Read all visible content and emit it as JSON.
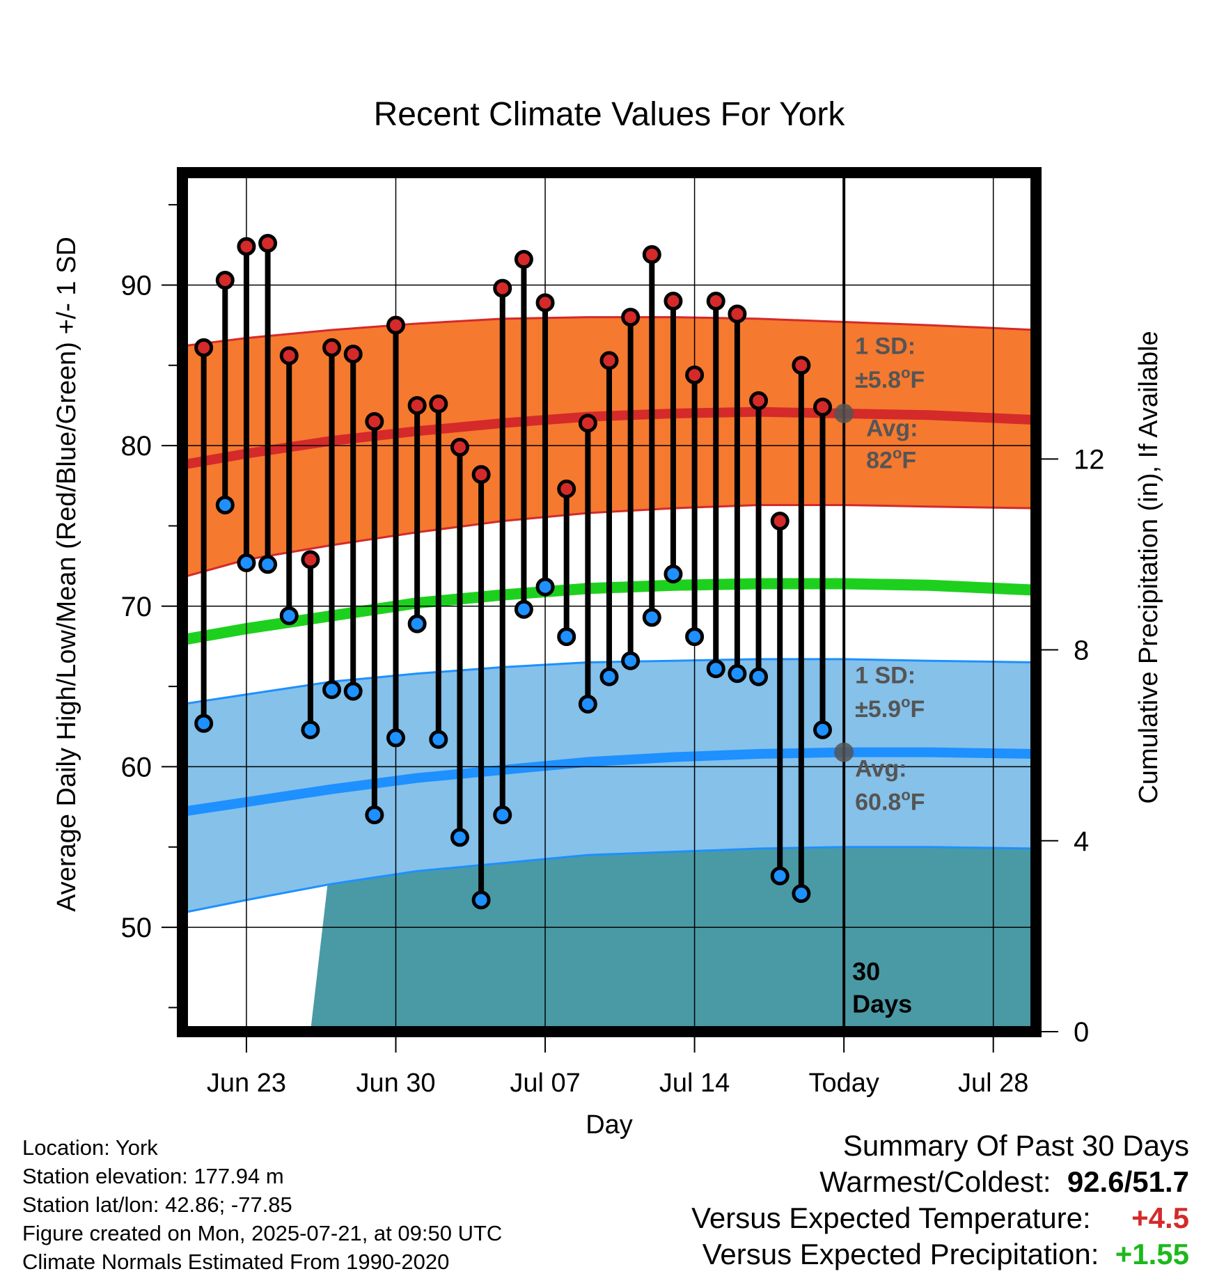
{
  "chart_data": {
    "type": "line",
    "title": "Recent Climate Values For York",
    "xlabel": "Day",
    "ylabel": "Average Daily High/Low/Mean (Red/Blue/Green) +/- 1 SD",
    "y2label": "Cumulative Precipitation (in), If Available",
    "x_ticks": [
      {
        "date": "2025-06-23",
        "label": "Jun 23"
      },
      {
        "date": "2025-06-30",
        "label": "Jun 30"
      },
      {
        "date": "2025-07-07",
        "label": "Jul 07"
      },
      {
        "date": "2025-07-14",
        "label": "Jul 14"
      },
      {
        "date": "2025-07-21",
        "label": "Today"
      },
      {
        "date": "2025-07-28",
        "label": "Jul 28"
      }
    ],
    "xlim": [
      "2025-06-20",
      "2025-07-30"
    ],
    "ylim": [
      43.5,
      97
    ],
    "y_ticks": [
      50,
      60,
      70,
      80,
      90
    ],
    "y2lim": [
      0,
      18
    ],
    "y2_ticks": [
      0,
      4,
      8,
      12
    ],
    "dates": [
      "2025-06-21",
      "2025-06-22",
      "2025-06-23",
      "2025-06-24",
      "2025-06-25",
      "2025-06-26",
      "2025-06-27",
      "2025-06-28",
      "2025-06-29",
      "2025-06-30",
      "2025-07-01",
      "2025-07-02",
      "2025-07-03",
      "2025-07-04",
      "2025-07-05",
      "2025-07-06",
      "2025-07-07",
      "2025-07-08",
      "2025-07-09",
      "2025-07-10",
      "2025-07-11",
      "2025-07-12",
      "2025-07-13",
      "2025-07-14",
      "2025-07-15",
      "2025-07-16",
      "2025-07-17",
      "2025-07-18",
      "2025-07-19",
      "2025-07-20"
    ],
    "series": [
      {
        "name": "High",
        "color": "#d42a2a",
        "values": [
          86.1,
          90.3,
          92.4,
          92.6,
          85.6,
          72.9,
          86.1,
          85.7,
          81.5,
          87.5,
          82.5,
          82.6,
          79.9,
          78.2,
          89.8,
          91.6,
          88.9,
          77.3,
          81.4,
          85.3,
          88.0,
          91.9,
          89.0,
          84.4,
          89.0,
          88.2,
          82.8,
          75.3,
          85.0,
          82.4
        ]
      },
      {
        "name": "Low",
        "color": "#1e90ff",
        "values": [
          62.7,
          76.3,
          72.7,
          72.6,
          69.4,
          62.3,
          64.8,
          64.7,
          57.0,
          61.8,
          68.9,
          61.7,
          55.6,
          51.7,
          57.0,
          69.8,
          71.2,
          68.1,
          63.9,
          65.6,
          66.6,
          69.3,
          72.0,
          68.1,
          66.1,
          65.8,
          65.6,
          53.2,
          52.1,
          62.3
        ]
      }
    ],
    "normals": {
      "dates": [
        "2025-06-20",
        "2025-06-23",
        "2025-06-27",
        "2025-07-01",
        "2025-07-05",
        "2025-07-09",
        "2025-07-13",
        "2025-07-17",
        "2025-07-21",
        "2025-07-25",
        "2025-07-30"
      ],
      "high_avg": [
        78.8,
        79.5,
        80.3,
        80.9,
        81.4,
        81.8,
        82.0,
        82.1,
        82.0,
        81.9,
        81.6
      ],
      "high_sd_upper": [
        86.2,
        86.7,
        87.2,
        87.6,
        87.9,
        88.0,
        88.0,
        87.9,
        87.7,
        87.5,
        87.2
      ],
      "high_sd_lower": [
        71.8,
        72.9,
        73.8,
        74.6,
        75.3,
        75.8,
        76.1,
        76.3,
        76.3,
        76.2,
        76.1
      ],
      "mean_avg": [
        67.9,
        68.6,
        69.4,
        70.2,
        70.7,
        71.1,
        71.3,
        71.4,
        71.4,
        71.3,
        71.0
      ],
      "low_avg": [
        57.2,
        57.8,
        58.6,
        59.3,
        59.8,
        60.3,
        60.6,
        60.8,
        60.9,
        60.9,
        60.8
      ],
      "low_sd_upper": [
        63.9,
        64.5,
        65.3,
        65.8,
        66.2,
        66.5,
        66.6,
        66.7,
        66.7,
        66.6,
        66.5
      ],
      "low_sd_lower": [
        50.9,
        51.7,
        52.7,
        53.5,
        54.0,
        54.5,
        54.7,
        54.9,
        55.0,
        55.0,
        54.9
      ]
    },
    "precip_cumulative": {
      "dates": [
        "2025-06-20",
        "2025-06-26",
        "2025-06-27",
        "2025-06-29",
        "2025-06-30",
        "2025-07-01",
        "2025-07-02",
        "2025-07-11",
        "2025-07-12",
        "2025-07-15",
        "2025-07-16",
        "2025-07-30"
      ],
      "values": [
        0.0,
        0.0,
        3.85,
        3.85,
        4.3,
        4.4,
        4.45,
        4.45,
        4.8,
        4.8,
        5.15,
        5.15
      ]
    },
    "annotations": {
      "high_sd": "1 SD:",
      "high_sd_value": "±5.8°F",
      "high_avg_label": "Avg:",
      "high_avg_value": "82°F",
      "low_sd": "1 SD:",
      "low_sd_value": "±5.9°F",
      "low_avg_label": "Avg:",
      "low_avg_value": "60.8°F",
      "days": "30",
      "days_label": "Days"
    },
    "colors": {
      "high_band": "#f5792f",
      "high_line": "#d42a2a",
      "low_band": "#85c1e9",
      "low_line": "#1e90ff",
      "mean_line": "#1ed01e",
      "precip": "#4a9aa5",
      "marker_high": "#d42a2a",
      "marker_low": "#1e90ff",
      "annotation_text": "#555555"
    }
  },
  "info": {
    "location": "Location: York",
    "elevation": "Station elevation: 177.94 m",
    "latlon": "Station lat/lon: 42.86; -77.85",
    "created": "Figure created on Mon, 2025-07-21, at 09:50 UTC",
    "normals": "Climate Normals Estimated From 1990-2020"
  },
  "summary": {
    "title": "Summary Of Past 30 Days",
    "warm_cold_label": "Warmest/Coldest:",
    "warmest": "92.6",
    "coldest": "51.7",
    "temp_label": "Versus Expected Temperature:",
    "temp_value": "+4.5",
    "precip_label": "Versus Expected Precipitation:",
    "precip_value": "+1.55"
  }
}
